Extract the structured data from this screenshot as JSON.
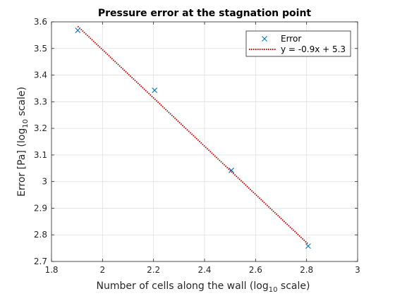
{
  "chart_data": {
    "type": "scatter",
    "title": "Pressure error at the stagnation point",
    "xlabel": {
      "pre": "Number of cells along the wall (log",
      "sub": "10",
      "post": " scale)"
    },
    "ylabel": {
      "pre": "Error [Pa] (log",
      "sub": "10",
      "post": " scale)"
    },
    "xlim": [
      1.8,
      3.0
    ],
    "ylim": [
      2.7,
      3.6
    ],
    "x_ticks": [
      "1.8",
      "2",
      "2.2",
      "2.4",
      "2.6",
      "2.8",
      "3"
    ],
    "y_ticks": [
      "2.7",
      "2.8",
      "2.9",
      "3",
      "3.1",
      "3.2",
      "3.3",
      "3.4",
      "3.5",
      "3.6"
    ],
    "grid": true,
    "legend_position": "top-right",
    "series": [
      {
        "name": "Error",
        "kind": "markers",
        "marker": "x",
        "color": "#0072BD",
        "x": [
          1.9031,
          2.2041,
          2.5051,
          2.8062
        ],
        "y": [
          3.568,
          3.343,
          3.042,
          2.758
        ]
      },
      {
        "name": "y = -0.9x + 5.3",
        "kind": "fit-line",
        "style": "dotted",
        "color": "#C00000",
        "x": [
          1.9031,
          2.8062
        ],
        "y": [
          3.583,
          2.765
        ]
      }
    ]
  }
}
